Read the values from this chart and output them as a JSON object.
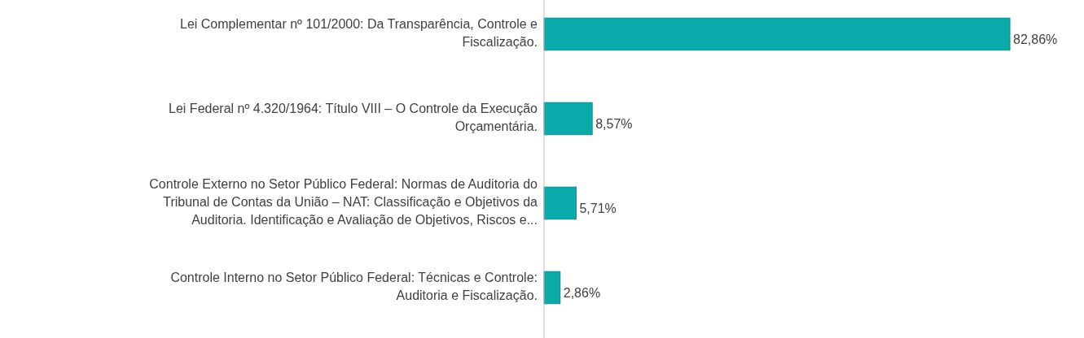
{
  "chart_data": {
    "type": "bar",
    "orientation": "horizontal",
    "categories": [
      "Lei Complementar nº 101/2000: Da Transparência, Controle e Fiscalização.",
      "Lei Federal nº 4.320/1964: Título VIII – O Controle da Execução Orçamentária.",
      "Controle Externo no Setor Público Federal: Normas de Auditoria do Tribunal de Contas da União – NAT: Classificação e Objetivos da Auditoria. Identificação e Avaliação de Objetivos, Riscos e...",
      "Controle Interno no Setor Público Federal: Técnicas e Controle: Auditoria e Fiscalização."
    ],
    "values": [
      82.86,
      8.57,
      5.71,
      2.86
    ],
    "value_labels": [
      "82,86%",
      "8,57%",
      "5,71%",
      "2,86%"
    ],
    "color": "#0aabab"
  }
}
